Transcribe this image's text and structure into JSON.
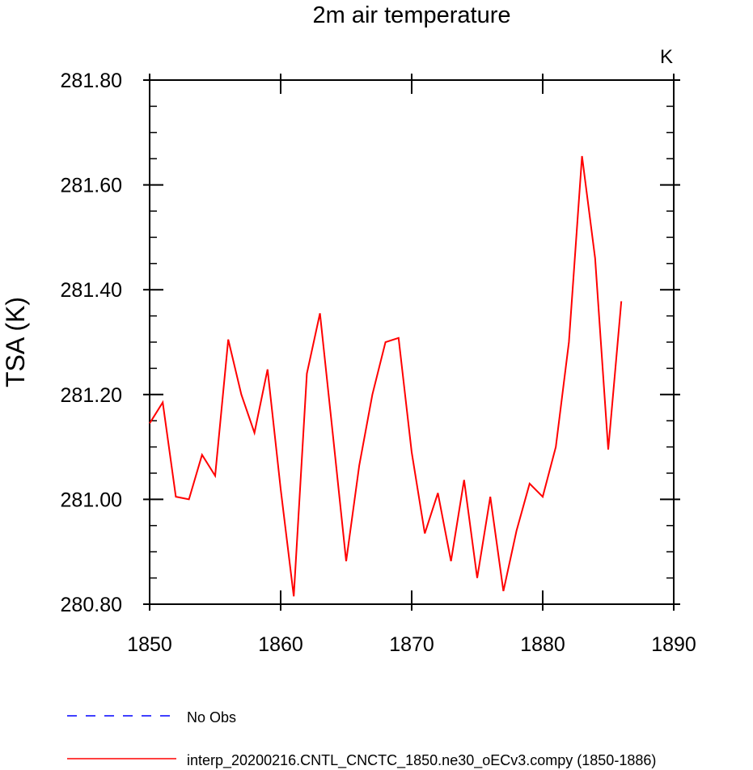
{
  "chart_data": {
    "type": "line",
    "title": "2m air temperature",
    "units_label": "K",
    "ylabel": "TSA  (K)",
    "xlabel": "",
    "xlim": [
      1850,
      1890
    ],
    "ylim": [
      280.8,
      281.8
    ],
    "x_ticks": [
      "1850",
      "1860",
      "1870",
      "1880",
      "1890"
    ],
    "x_tick_values": [
      1850,
      1860,
      1870,
      1880,
      1890
    ],
    "y_ticks": [
      "280.80",
      "281.00",
      "281.20",
      "281.40",
      "281.60",
      "281.80"
    ],
    "y_tick_values": [
      280.8,
      281.0,
      281.2,
      281.4,
      281.6,
      281.8
    ],
    "grid": false,
    "legend_placement": "bottom-left",
    "series": [
      {
        "name": "No Obs",
        "color": "#0000ff",
        "style": "dashed",
        "x": [],
        "values": []
      },
      {
        "name": "interp_20200216.CNTL_CNCTC_1850.ne30_oECv3.compy (1850-1886)",
        "color": "#ff0000",
        "style": "solid",
        "x": [
          1850,
          1851,
          1852,
          1853,
          1854,
          1855,
          1856,
          1857,
          1858,
          1859,
          1860,
          1861,
          1862,
          1863,
          1864,
          1865,
          1866,
          1867,
          1868,
          1869,
          1870,
          1871,
          1872,
          1873,
          1874,
          1875,
          1876,
          1877,
          1878,
          1879,
          1880,
          1881,
          1882,
          1883,
          1884,
          1885,
          1886
        ],
        "values": [
          281.145,
          281.185,
          281.005,
          281.0,
          281.085,
          281.045,
          281.305,
          281.2,
          281.127,
          281.248,
          281.02,
          280.815,
          281.24,
          281.355,
          281.12,
          280.882,
          281.065,
          281.2,
          281.3,
          281.308,
          281.09,
          280.935,
          281.012,
          280.882,
          281.037,
          280.85,
          281.005,
          280.825,
          280.94,
          281.03,
          281.005,
          281.1,
          281.3,
          281.655,
          281.46,
          281.095,
          281.378
        ]
      }
    ]
  }
}
